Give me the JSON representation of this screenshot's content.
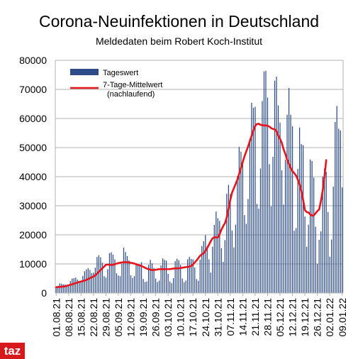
{
  "header": {
    "title": "Corona-Neuinfektionen in Deutschland",
    "subtitle": "Meldedaten beim Robert Koch-Institut"
  },
  "logo": {
    "text": "taz",
    "color": "#d7191c"
  },
  "chart_data": {
    "type": "bar",
    "title": "Corona-Neuinfektionen in Deutschland",
    "subtitle": "Meldedaten beim Robert Koch-Institut",
    "ylim": [
      0,
      80000
    ],
    "yticks": [
      0,
      10000,
      20000,
      30000,
      40000,
      50000,
      60000,
      70000,
      80000
    ],
    "xticks": [
      "01.08.21",
      "08.08.21",
      "15.08.21",
      "22.08.21",
      "29.08.21",
      "05.09.21",
      "12.09.21",
      "19.09.21",
      "26.09.21",
      "03.10.21",
      "10.10.21",
      "17.10.21",
      "24.10.21",
      "31.10.21",
      "07.11.21",
      "14.11.21",
      "21.11.21",
      "28.11.21",
      "05.12.21",
      "12.12.21",
      "19.12.21",
      "26.12.21",
      "02.01.22",
      "09.01.22"
    ],
    "grid": "horizontal",
    "legend": "top-left",
    "colors": {
      "bars": "#2e4c87",
      "line": "#e8141c"
    },
    "series": [
      {
        "name": "Tageswert",
        "type": "bar",
        "values": [
          1900,
          2400,
          3300,
          3200,
          3000,
          2900,
          2500,
          2300,
          4100,
          5000,
          5100,
          5300,
          4600,
          3800,
          4100,
          5900,
          7500,
          8100,
          8500,
          7900,
          6800,
          7000,
          8700,
          12400,
          13000,
          12300,
          10400,
          5800,
          5300,
          8200,
          13700,
          14000,
          13200,
          11600,
          6800,
          6000,
          5800,
          10000,
          15600,
          14100,
          12700,
          11200,
          6100,
          5200,
          5800,
          10200,
          9600,
          9800,
          10600,
          4800,
          3800,
          4000,
          9700,
          11400,
          10200,
          8600,
          5000,
          3800,
          4300,
          9500,
          11900,
          11400,
          11100,
          6600,
          4000,
          3400,
          5100,
          11000,
          11800,
          11300,
          9700,
          5000,
          3700,
          4300,
          11600,
          12400,
          11700,
          11600,
          8800,
          4800,
          4200,
          11500,
          16100,
          17800,
          19900,
          16200,
          11600,
          7000,
          15900,
          23400,
          28000,
          25700,
          24800,
          15400,
          10700,
          18200,
          34100,
          37200,
          34000,
          21500,
          15700,
          23500,
          40200,
          50200,
          48600,
          45800,
          26800,
          23800,
          32300,
          53000,
          65400,
          63700,
          64000,
          30600,
          29000,
          42800,
          66000,
          76200,
          76400,
          67200,
          44300,
          29800,
          46800,
          73000,
          74400,
          64500,
          58600,
          42200,
          30400,
          45800,
          61300,
          70500,
          61300,
          57300,
          21400,
          22300,
          42700,
          56900,
          51200,
          50800,
          26300,
          15900,
          23500,
          45900,
          45400,
          39700,
          22800,
          10100,
          18300,
          21200,
          40000,
          42800,
          41600,
          27800,
          12500,
          18400,
          36600,
          58800,
          64300,
          56500,
          55900,
          36300
        ]
      },
      {
        "name": "7-Tage-Mittelwert (nachlaufend)",
        "type": "line",
        "values": [
          2000,
          2050,
          2100,
          2150,
          2200,
          2350,
          2500,
          2650,
          2800,
          3000,
          3200,
          3400,
          3600,
          3800,
          3950,
          4100,
          4300,
          4500,
          4800,
          5100,
          5400,
          5700,
          6100,
          6700,
          7300,
          7900,
          8500,
          9100,
          9700,
          9800,
          9700,
          9600,
          9700,
          9900,
          10100,
          10300,
          10400,
          10500,
          10600,
          10600,
          10600,
          10500,
          10400,
          10300,
          10100,
          9900,
          9700,
          9500,
          9300,
          9000,
          8700,
          8400,
          8200,
          8000,
          7900,
          7900,
          8000,
          8100,
          8200,
          8200,
          8200,
          8200,
          8200,
          8200,
          8200,
          8300,
          8400,
          8500,
          8500,
          8500,
          8600,
          8700,
          8800,
          8900,
          9000,
          9100,
          9300,
          9800,
          10500,
          11200,
          12000,
          12800,
          13300,
          13700,
          14500,
          15500,
          16600,
          17800,
          18800,
          19200,
          19100,
          19100,
          20200,
          21800,
          23000,
          24000,
          26000,
          29000,
          32000,
          34500,
          36000,
          37500,
          39000,
          41000,
          43000,
          45000,
          47000,
          48700,
          50300,
          52300,
          54000,
          55900,
          57400,
          58100,
          58200,
          57800,
          57700,
          57600,
          57600,
          57500,
          57200,
          56700,
          56400,
          56300,
          55600,
          54100,
          53000,
          51600,
          49400,
          47800,
          45800,
          44400,
          43000,
          41900,
          41200,
          40400,
          39000,
          37400,
          35000,
          32000,
          28500,
          27800,
          27700,
          27000,
          26600,
          26700,
          27400,
          28200,
          28700,
          31600,
          35200,
          40000,
          45700
        ]
      }
    ]
  }
}
